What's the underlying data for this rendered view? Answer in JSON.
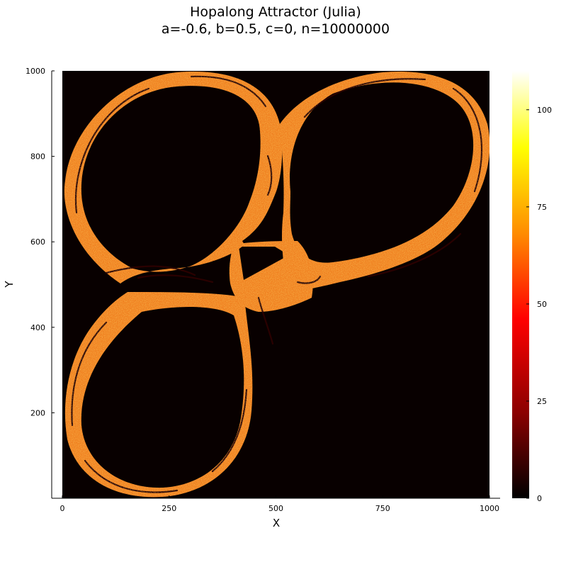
{
  "chart_data": {
    "type": "heatmap",
    "title": "Hopalong Attractor (Julia)",
    "subtitle": "a=-0.6, b=0.5, c=0, n=10000000",
    "xlabel": "X",
    "ylabel": "Y",
    "xlim": [
      0,
      1000
    ],
    "ylim": [
      0,
      1000
    ],
    "xticks": [
      0,
      250,
      500,
      750,
      1000
    ],
    "yticks": [
      200,
      400,
      600,
      800,
      1000
    ],
    "colorbar": {
      "range": [
        0,
        110
      ],
      "ticks": [
        0,
        25,
        50,
        75,
        100
      ],
      "colormap": [
        "#000000",
        "#8b0000",
        "#ff0000",
        "#ff8c00",
        "#ffff00",
        "#ffffff"
      ]
    },
    "background_color": "#080000",
    "dominant_color": "#f08020",
    "grid": false,
    "legend": "none"
  }
}
